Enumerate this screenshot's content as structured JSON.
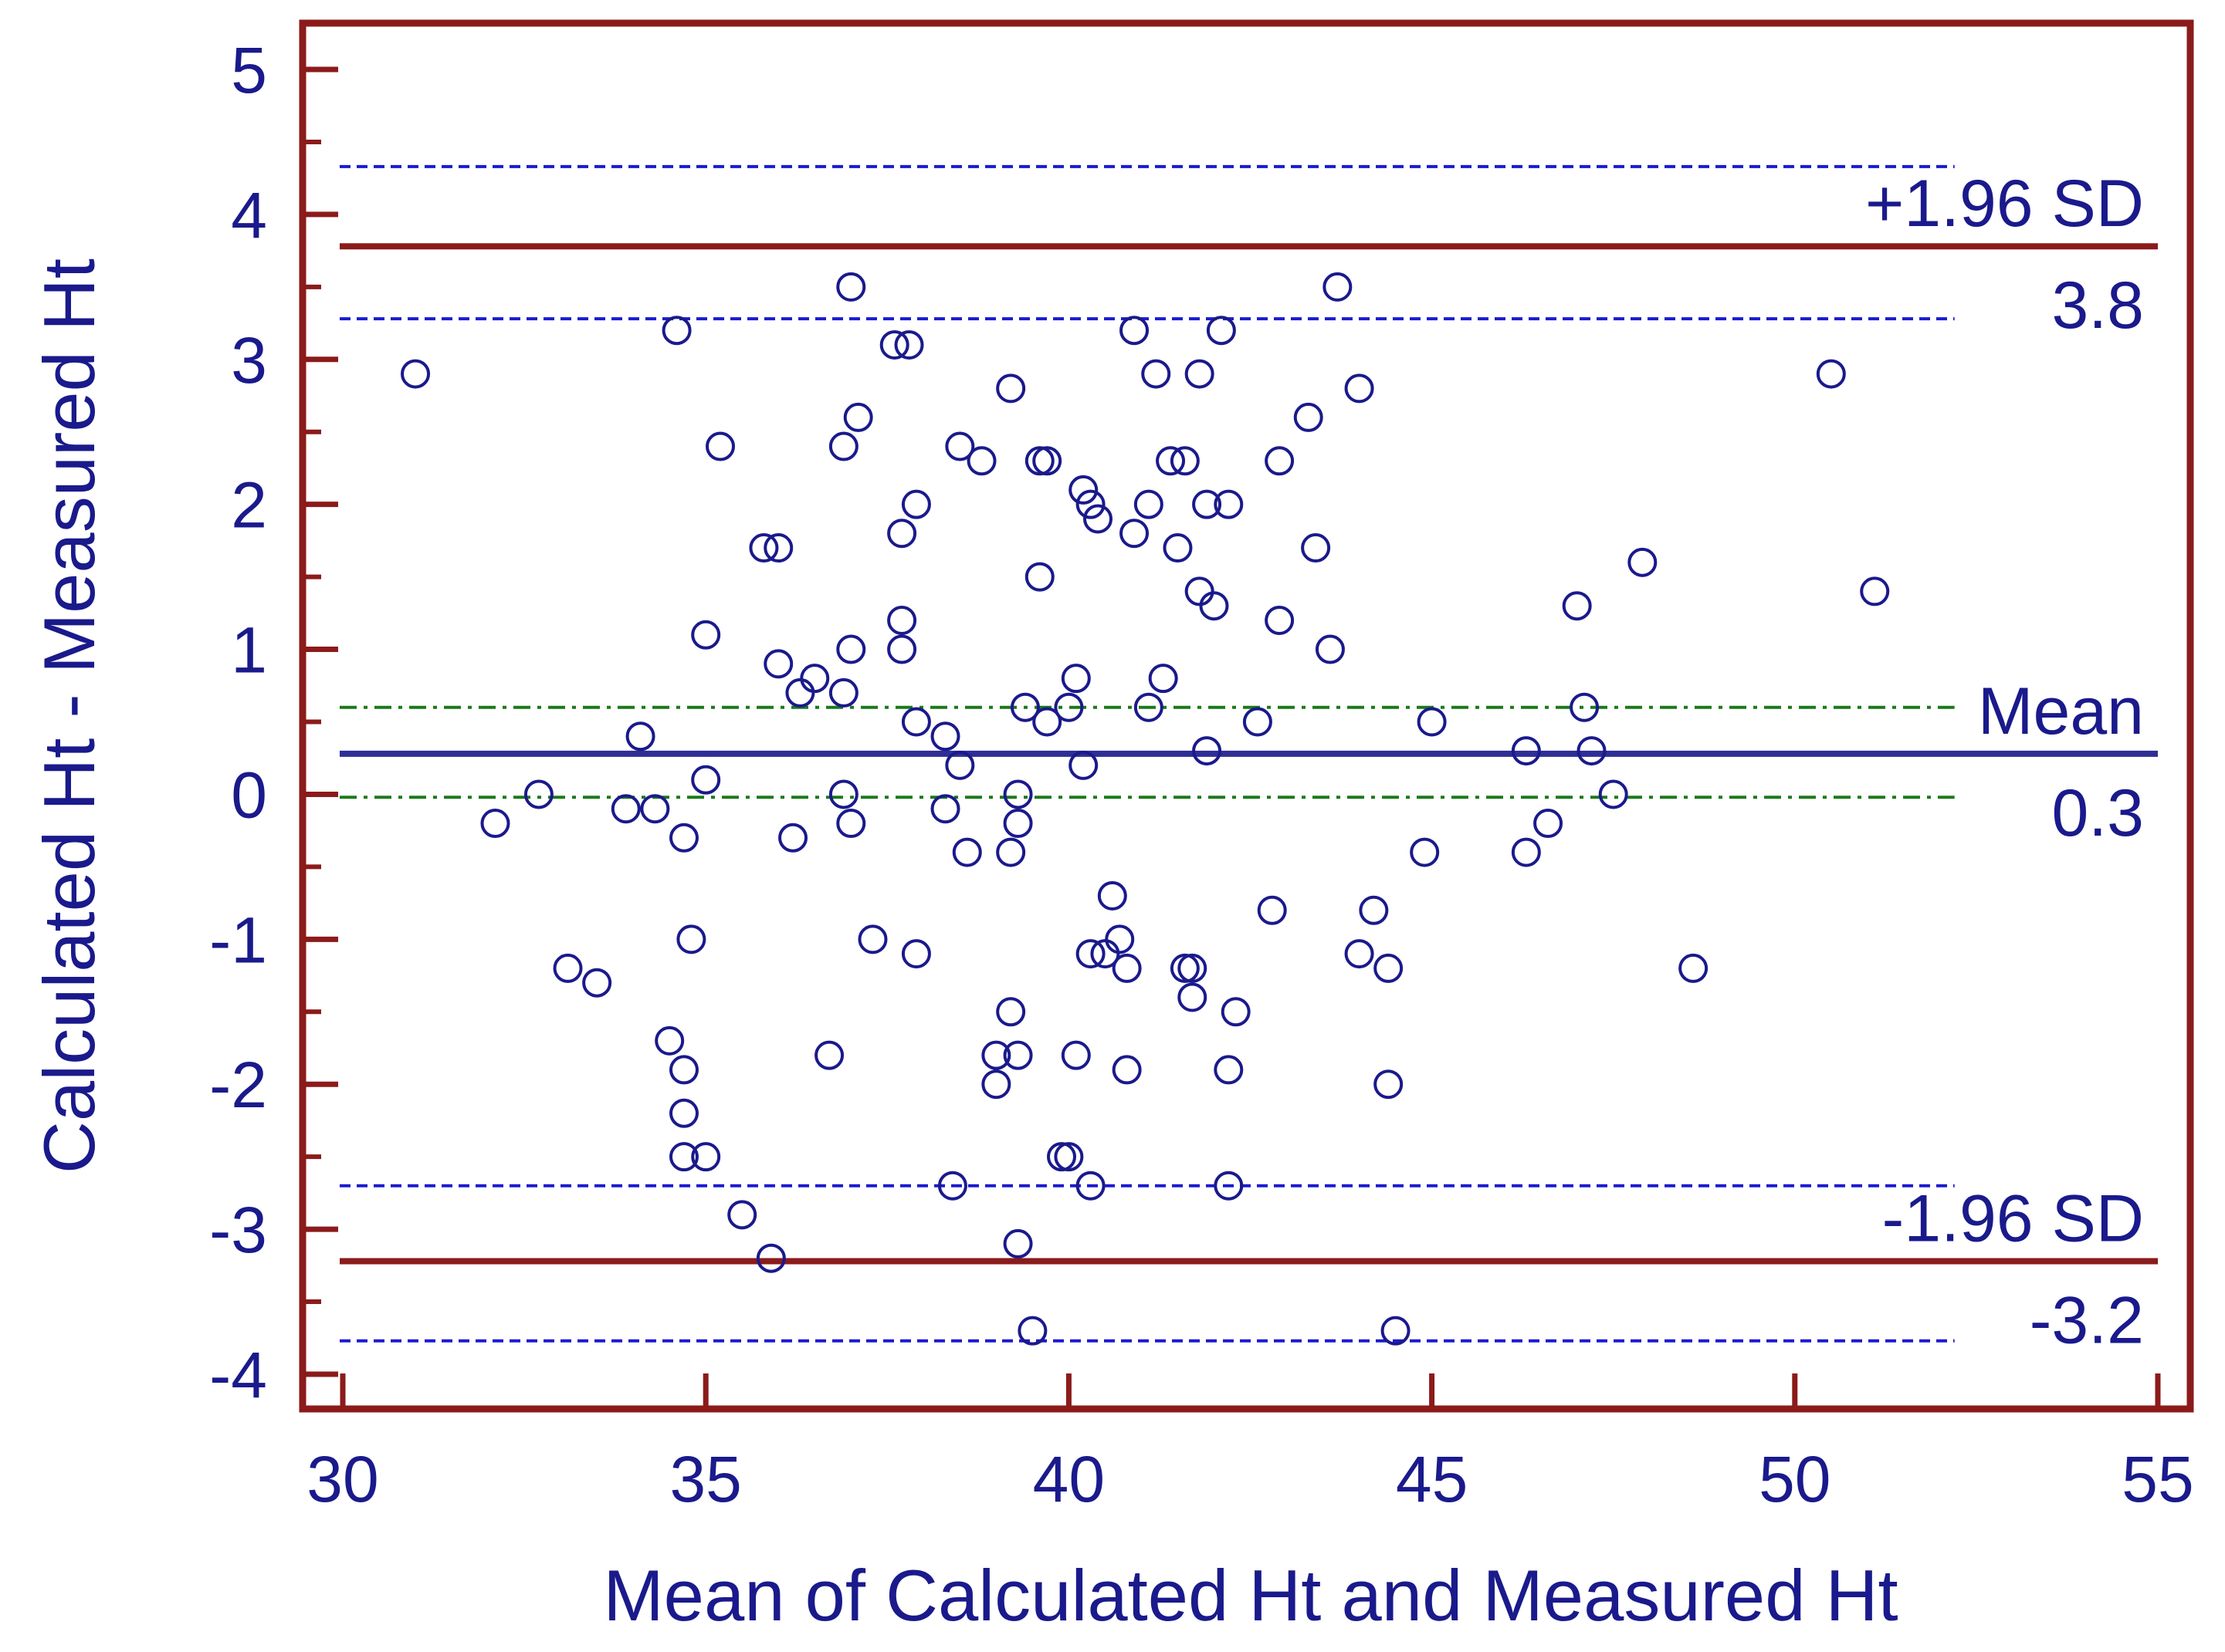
{
  "chart_data": {
    "type": "scatter",
    "title": "",
    "xlabel": "Mean of Calculated Ht and Measured Ht",
    "ylabel": "Calculated Ht - Measured Ht",
    "xlim": [
      30,
      55
    ],
    "ylim": [
      -4,
      5
    ],
    "x_ticks": [
      "30",
      "35",
      "40",
      "45",
      "50",
      "55"
    ],
    "y_ticks": [
      "5",
      "4",
      "3",
      "2",
      "1",
      "0",
      "-1",
      "-2",
      "-3",
      "-4"
    ],
    "x_tick_values": [
      30,
      35,
      40,
      45,
      50,
      55
    ],
    "y_tick_values": [
      5,
      4,
      3,
      2,
      1,
      0,
      -1,
      -2,
      -3,
      -4
    ],
    "reference_lines": [
      {
        "name": "upper-loa",
        "kind": "loa",
        "y": 3.78,
        "label_top": "+1.96 SD",
        "label_bottom": "3.8"
      },
      {
        "name": "mean",
        "kind": "mean",
        "y": 0.28,
        "label_top": "Mean",
        "label_bottom": "0.3"
      },
      {
        "name": "lower-loa",
        "kind": "loa",
        "y": -3.22,
        "label_top": "-1.96 SD",
        "label_bottom": "-3.2"
      }
    ],
    "ci_lines": [
      {
        "name": "upper-loa-ci-high",
        "kind": "loa-ci",
        "y": 4.33
      },
      {
        "name": "upper-loa-ci-low",
        "kind": "loa-ci",
        "y": 3.28
      },
      {
        "name": "mean-ci-high",
        "kind": "mean-ci",
        "y": 0.6
      },
      {
        "name": "mean-ci-low",
        "kind": "mean-ci",
        "y": -0.02
      },
      {
        "name": "lower-loa-ci-high",
        "kind": "loa-ci",
        "y": -2.7
      },
      {
        "name": "lower-loa-ci-low",
        "kind": "loa-ci",
        "y": -3.77
      }
    ],
    "ci_x_end": 52.2,
    "points": [
      [
        31.0,
        2.9
      ],
      [
        32.1,
        -0.2
      ],
      [
        32.7,
        0.0
      ],
      [
        33.1,
        -1.2
      ],
      [
        33.5,
        -1.3
      ],
      [
        33.9,
        -0.1
      ],
      [
        34.1,
        0.4
      ],
      [
        34.3,
        -0.1
      ],
      [
        34.5,
        -1.7
      ],
      [
        34.6,
        3.2
      ],
      [
        34.7,
        -0.3
      ],
      [
        34.7,
        -1.9
      ],
      [
        34.7,
        -2.2
      ],
      [
        34.7,
        -2.5
      ],
      [
        34.8,
        -1.0
      ],
      [
        35.0,
        -2.5
      ],
      [
        35.0,
        1.1
      ],
      [
        35.0,
        0.1
      ],
      [
        35.2,
        2.4
      ],
      [
        35.5,
        -2.9
      ],
      [
        35.8,
        1.7
      ],
      [
        36.0,
        1.7
      ],
      [
        36.0,
        0.9
      ],
      [
        35.9,
        -3.2
      ],
      [
        36.2,
        -0.3
      ],
      [
        36.3,
        0.7
      ],
      [
        36.5,
        0.8
      ],
      [
        36.7,
        -1.8
      ],
      [
        36.9,
        2.4
      ],
      [
        36.9,
        0.7
      ],
      [
        36.9,
        0.0
      ],
      [
        37.0,
        1.0
      ],
      [
        37.0,
        -0.2
      ],
      [
        37.0,
        3.5
      ],
      [
        37.1,
        2.6
      ],
      [
        37.3,
        -1.0
      ],
      [
        37.6,
        3.1
      ],
      [
        37.7,
        1.8
      ],
      [
        37.7,
        1.2
      ],
      [
        37.7,
        1.0
      ],
      [
        37.8,
        3.1
      ],
      [
        37.9,
        2.0
      ],
      [
        37.9,
        0.5
      ],
      [
        37.9,
        -1.1
      ],
      [
        38.3,
        0.4
      ],
      [
        38.3,
        -0.1
      ],
      [
        38.4,
        -2.7
      ],
      [
        38.5,
        2.4
      ],
      [
        38.5,
        0.2
      ],
      [
        38.6,
        -0.4
      ],
      [
        38.8,
        2.3
      ],
      [
        39.0,
        -1.8
      ],
      [
        39.0,
        -2.0
      ],
      [
        39.2,
        -1.5
      ],
      [
        39.2,
        2.8
      ],
      [
        39.2,
        -0.4
      ],
      [
        39.3,
        -1.8
      ],
      [
        39.3,
        -3.1
      ],
      [
        39.3,
        0.0
      ],
      [
        39.3,
        -0.2
      ],
      [
        39.4,
        0.6
      ],
      [
        39.5,
        -3.7
      ],
      [
        39.6,
        2.3
      ],
      [
        39.6,
        1.5
      ],
      [
        39.7,
        2.3
      ],
      [
        39.7,
        0.5
      ],
      [
        39.9,
        -2.5
      ],
      [
        40.0,
        -2.5
      ],
      [
        40.0,
        0.6
      ],
      [
        40.1,
        0.8
      ],
      [
        40.1,
        -1.8
      ],
      [
        40.2,
        2.1
      ],
      [
        40.2,
        0.2
      ],
      [
        40.3,
        2.0
      ],
      [
        40.3,
        -1.1
      ],
      [
        40.3,
        -2.7
      ],
      [
        40.4,
        1.9
      ],
      [
        40.5,
        -1.1
      ],
      [
        40.6,
        -0.7
      ],
      [
        40.7,
        -1.0
      ],
      [
        40.8,
        -1.2
      ],
      [
        40.8,
        -1.9
      ],
      [
        40.9,
        3.2
      ],
      [
        40.9,
        1.8
      ],
      [
        41.1,
        2.0
      ],
      [
        41.1,
        0.6
      ],
      [
        41.2,
        2.9
      ],
      [
        41.3,
        0.8
      ],
      [
        41.4,
        2.3
      ],
      [
        41.5,
        1.7
      ],
      [
        41.6,
        2.3
      ],
      [
        41.6,
        -1.2
      ],
      [
        41.7,
        -1.2
      ],
      [
        41.7,
        -1.4
      ],
      [
        41.8,
        2.9
      ],
      [
        41.8,
        1.4
      ],
      [
        41.9,
        0.3
      ],
      [
        41.9,
        2.0
      ],
      [
        42.0,
        1.3
      ],
      [
        42.1,
        3.2
      ],
      [
        42.2,
        -1.9
      ],
      [
        42.2,
        -2.7
      ],
      [
        42.2,
        2.0
      ],
      [
        42.3,
        -1.5
      ],
      [
        42.6,
        0.5
      ],
      [
        42.8,
        -0.8
      ],
      [
        42.9,
        2.3
      ],
      [
        42.9,
        1.2
      ],
      [
        43.3,
        2.6
      ],
      [
        43.4,
        1.7
      ],
      [
        43.6,
        1.0
      ],
      [
        43.7,
        3.5
      ],
      [
        44.0,
        2.8
      ],
      [
        44.0,
        -1.1
      ],
      [
        44.2,
        -0.8
      ],
      [
        44.4,
        -1.2
      ],
      [
        44.4,
        -2.0
      ],
      [
        44.5,
        -3.7
      ],
      [
        44.9,
        -0.4
      ],
      [
        45.0,
        0.5
      ],
      [
        46.3,
        0.3
      ],
      [
        46.3,
        -0.4
      ],
      [
        46.6,
        -0.2
      ],
      [
        47.0,
        1.3
      ],
      [
        47.1,
        0.6
      ],
      [
        47.2,
        0.3
      ],
      [
        47.5,
        0.0
      ],
      [
        47.9,
        1.6
      ],
      [
        48.6,
        -1.2
      ],
      [
        50.5,
        2.9
      ],
      [
        51.1,
        1.4
      ]
    ]
  },
  "colors": {
    "frame": "#8b1a1a",
    "loa": "#8b1a1a",
    "mean": "#2e2e96",
    "loa_ci": "#1a1ad0",
    "mean_ci": "#1a7a1a",
    "marker": "#1a1a8c",
    "text": "#1a1a8c"
  }
}
